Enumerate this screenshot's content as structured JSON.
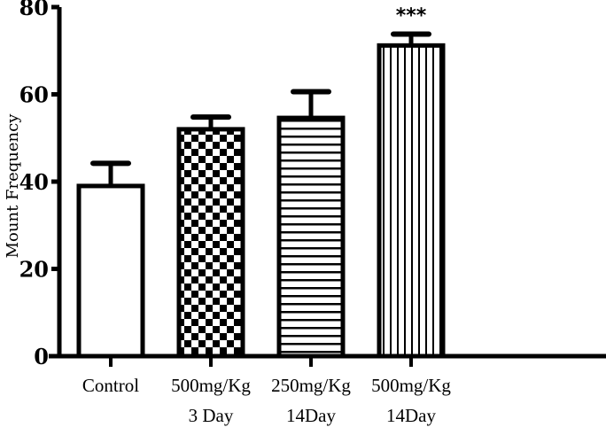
{
  "chart_data": {
    "type": "bar",
    "title": "",
    "xlabel": "",
    "ylabel": "Mount Frequency",
    "ylim": [
      0,
      80
    ],
    "yticks": [
      "0",
      "20",
      "40",
      "60",
      "80"
    ],
    "grid": false,
    "categories": [
      [
        "Control"
      ],
      [
        "500mg/Kg",
        "3 Day"
      ],
      [
        "250mg/Kg",
        "14Day"
      ],
      [
        "500mg/Kg",
        "14Day"
      ]
    ],
    "values": [
      39,
      52,
      54.6,
      71.2
    ],
    "error_upper": [
      44.2,
      54.8,
      60.6,
      73.8
    ],
    "patterns": [
      "empty",
      "checkerboard",
      "horizontal-lines",
      "vertical-lines"
    ],
    "annotations": [
      "",
      "",
      "",
      "***"
    ],
    "colors": {
      "stroke": "#000000",
      "fill": "#ffffff"
    }
  }
}
